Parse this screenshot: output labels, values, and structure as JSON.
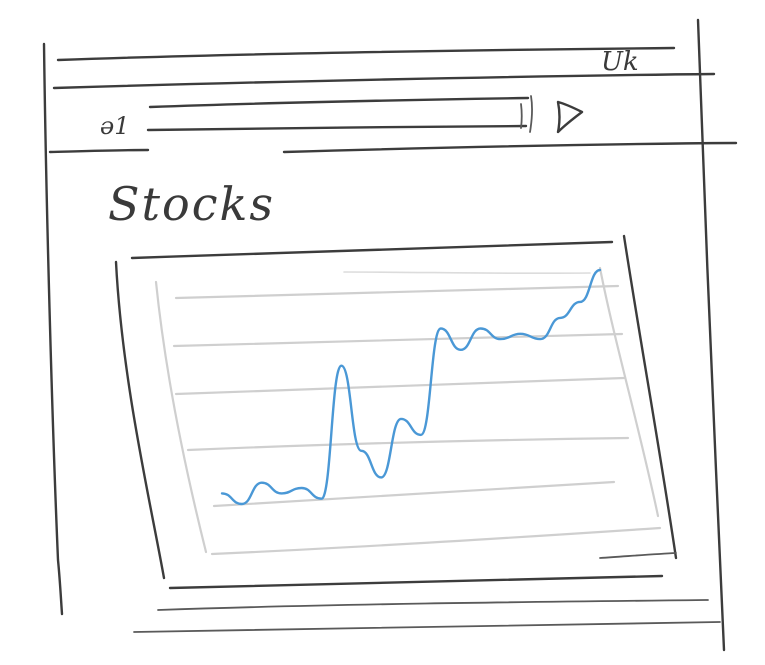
{
  "window": {
    "title_bar_text": "_Uk"
  },
  "address_bar": {
    "prefix_text": "ə1",
    "url_value": "",
    "go_icon": "play-triangle-icon"
  },
  "page": {
    "heading": "Stocks"
  },
  "colors": {
    "ink": "#3c3c3c",
    "grid": "#cfcfcf",
    "series": "#4a98d6"
  },
  "chart_data": {
    "type": "line",
    "title": "",
    "xlabel": "",
    "ylabel": "",
    "grid": true,
    "legend": "none",
    "series": [
      {
        "values": [
          10,
          8,
          12,
          10,
          11,
          9,
          34,
          18,
          13,
          24,
          21,
          41,
          37,
          41,
          39,
          40,
          39,
          43,
          46,
          52
        ]
      }
    ]
  }
}
